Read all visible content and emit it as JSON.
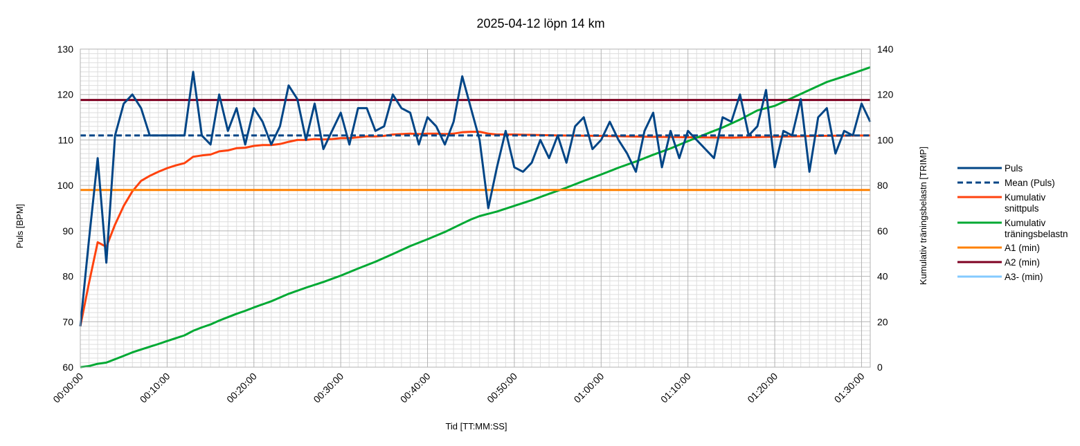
{
  "chart_data": {
    "type": "line",
    "title": "2025-04-12 löpn 14 km",
    "xlabel": "Tid [TT:MM:SS]",
    "ylabel": "Puls [BPM]",
    "y2label": "Kumulativ träningsbelastn [TRIMP]",
    "xlim": [
      0,
      91
    ],
    "ylim": [
      60,
      130
    ],
    "y2lim": [
      0,
      140
    ],
    "x_ticks": [
      0,
      10,
      20,
      30,
      40,
      50,
      60,
      70,
      80,
      90
    ],
    "x_tick_labels": [
      "00:00:00",
      "00:10:00",
      "00:20:00",
      "00:30:00",
      "00:40:00",
      "00:50:00",
      "01:00:00",
      "01:10:00",
      "01:20:00",
      "01:30:00"
    ],
    "y_ticks": [
      60,
      70,
      80,
      90,
      100,
      110,
      120,
      130
    ],
    "y2_ticks": [
      0,
      20,
      40,
      60,
      80,
      100,
      120,
      140
    ],
    "grid": true,
    "legend_position": "right",
    "x_unit": "minutes",
    "series": [
      {
        "name": "Puls",
        "axis": "left",
        "color": "#004586",
        "dash": "solid",
        "x": [
          0,
          1,
          2,
          3,
          4,
          5,
          6,
          7,
          8,
          9,
          10,
          11,
          12,
          13,
          14,
          15,
          16,
          17,
          18,
          19,
          20,
          21,
          22,
          23,
          24,
          25,
          26,
          27,
          28,
          29,
          30,
          31,
          32,
          33,
          34,
          35,
          36,
          37,
          38,
          39,
          40,
          41,
          42,
          43,
          44,
          45,
          46,
          47,
          48,
          49,
          50,
          51,
          52,
          53,
          54,
          55,
          56,
          57,
          58,
          59,
          60,
          61,
          62,
          63,
          64,
          65,
          66,
          67,
          68,
          69,
          70,
          71,
          72,
          73,
          74,
          75,
          76,
          77,
          78,
          79,
          80,
          81,
          82,
          83,
          84,
          85,
          86,
          87,
          88,
          89,
          90,
          91
        ],
        "values": [
          69,
          88,
          106,
          83,
          111,
          118,
          120,
          117,
          111,
          111,
          111,
          111,
          111,
          125,
          111,
          109,
          120,
          112,
          117,
          109,
          117,
          114,
          109,
          113,
          122,
          119,
          110,
          118,
          108,
          112,
          116,
          109,
          117,
          117,
          112,
          113,
          120,
          117,
          116,
          109,
          115,
          113,
          109,
          114,
          124,
          117,
          110,
          95,
          104,
          112,
          104,
          103,
          105,
          110,
          106,
          111,
          105,
          113,
          115,
          108,
          110,
          114,
          110,
          107,
          103,
          112,
          116,
          104,
          112,
          106,
          112,
          110,
          108,
          106,
          115,
          114,
          120,
          111,
          113,
          121,
          104,
          112,
          111,
          119,
          103,
          115,
          117,
          107,
          112,
          111,
          118,
          114
        ]
      },
      {
        "name": "Mean (Puls)",
        "axis": "left",
        "color": "#004586",
        "dash": "dashed",
        "x": [
          0,
          91
        ],
        "values": [
          111,
          111
        ]
      },
      {
        "name": "Kumulativ snittpuls",
        "axis": "left",
        "color": "#ff420e",
        "dash": "solid",
        "x": [
          0,
          1,
          2,
          3,
          4,
          5,
          6,
          7,
          8,
          9,
          10,
          11,
          12,
          13,
          14,
          15,
          16,
          17,
          18,
          19,
          20,
          21,
          22,
          23,
          24,
          25,
          26,
          27,
          28,
          29,
          30,
          31,
          32,
          33,
          34,
          35,
          36,
          37,
          38,
          39,
          40,
          41,
          42,
          43,
          44,
          45,
          46,
          47,
          48,
          49,
          50,
          55,
          60,
          65,
          70,
          75,
          80,
          85,
          91
        ],
        "values": [
          69,
          78.5,
          87.5,
          86.5,
          91.4,
          95.5,
          98.7,
          101.0,
          102.1,
          103.0,
          103.8,
          104.4,
          104.9,
          106.3,
          106.6,
          106.8,
          107.5,
          107.7,
          108.2,
          108.3,
          108.7,
          108.9,
          108.9,
          109.1,
          109.6,
          110.0,
          110.0,
          110.2,
          110.1,
          110.2,
          110.4,
          110.4,
          110.6,
          110.8,
          110.8,
          110.9,
          111.2,
          111.3,
          111.4,
          111.3,
          111.4,
          111.4,
          111.3,
          111.4,
          111.7,
          111.8,
          111.8,
          111.4,
          111.2,
          111.2,
          111.2,
          111.0,
          110.9,
          110.7,
          110.6,
          110.5,
          110.7,
          110.9,
          111.0
        ]
      },
      {
        "name": "Kumulativ träningsbelastn",
        "axis": "right",
        "color": "#00a933",
        "dash": "solid",
        "x": [
          0,
          1,
          2,
          3,
          4,
          5,
          6,
          7,
          8,
          9,
          10,
          12,
          13,
          14,
          15,
          16,
          17,
          18,
          19,
          20,
          22,
          24,
          26,
          28,
          30,
          32,
          34,
          36,
          38,
          40,
          42,
          44,
          45,
          46,
          47,
          48,
          50,
          52,
          54,
          56,
          58,
          60,
          62,
          64,
          66,
          68,
          70,
          72,
          74,
          76,
          78,
          80,
          82,
          84,
          86,
          88,
          91
        ],
        "values": [
          0,
          0.5,
          1.5,
          2,
          3.5,
          5,
          6.5,
          7.8,
          9,
          10.2,
          11.5,
          14,
          16,
          17.5,
          18.8,
          20.5,
          22,
          23.5,
          24.8,
          26.3,
          29,
          32.3,
          35,
          37.5,
          40.3,
          43.4,
          46.4,
          49.8,
          53.3,
          56.3,
          59.5,
          63.2,
          65,
          66.5,
          67.5,
          68.5,
          71,
          73.5,
          76.3,
          79,
          82,
          84.8,
          87.8,
          90.5,
          93.5,
          96.3,
          99.5,
          102.5,
          105.5,
          109,
          113,
          115,
          118.5,
          122,
          125.5,
          128,
          132
        ]
      },
      {
        "name": "A1 (min)",
        "axis": "left",
        "color": "#ff8000",
        "dash": "solid",
        "x": [
          0,
          91
        ],
        "values": [
          99,
          99
        ]
      },
      {
        "name": "A2 (min)",
        "axis": "left",
        "color": "#7e0021",
        "dash": "solid",
        "x": [
          0,
          91
        ],
        "values": [
          118.8,
          118.8
        ]
      },
      {
        "name": "A3- (min)",
        "axis": "left",
        "color": "#83caff",
        "dash": "solid",
        "x": [],
        "values": []
      }
    ],
    "legend_labels": [
      [
        "Puls"
      ],
      [
        "Mean (Puls)"
      ],
      [
        "Kumulativ",
        "snittpuls"
      ],
      [
        "Kumulativ",
        "träningsbelastn"
      ],
      [
        "A1 (min)"
      ],
      [
        "A2 (min)"
      ],
      [
        "A3- (min)"
      ]
    ]
  }
}
